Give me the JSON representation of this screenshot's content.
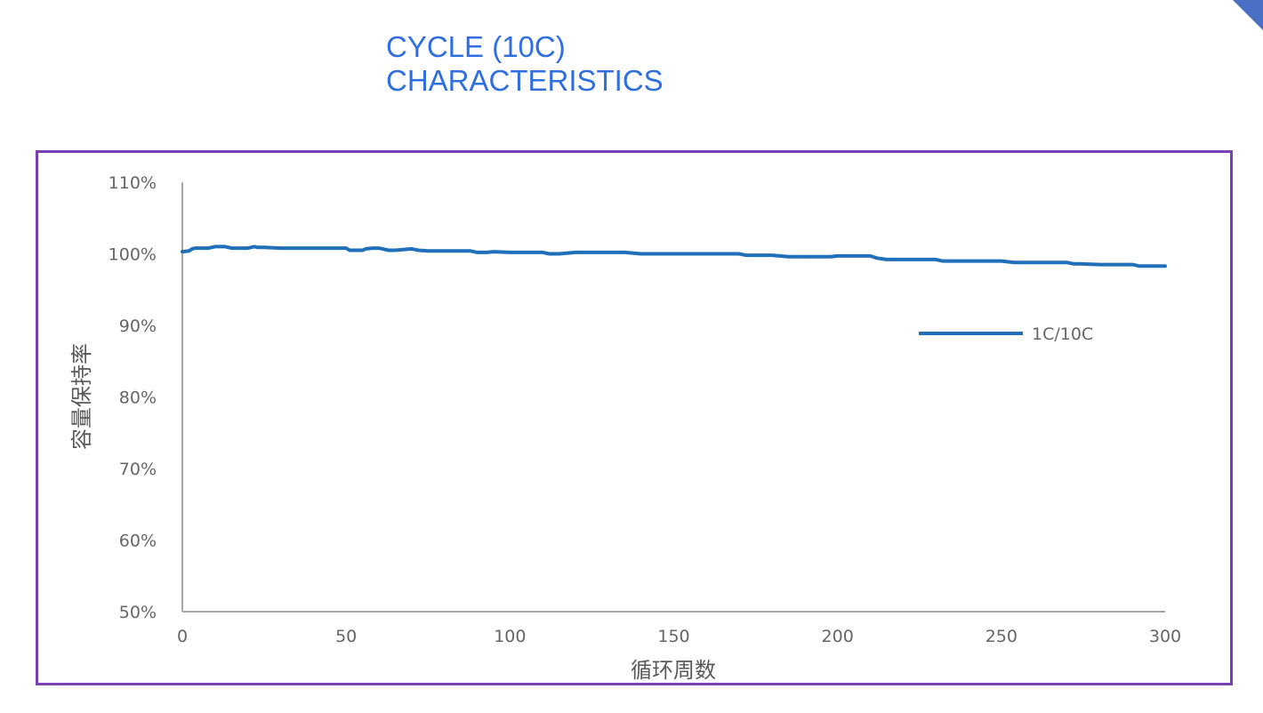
{
  "title_lines": [
    "CYCLE (10C)",
    "CHARACTERISTICS"
  ],
  "chart_data": {
    "type": "line",
    "title": "CYCLE (10C) CHARACTERISTICS",
    "xlabel": "循环周数",
    "ylabel": "容量保持率",
    "xlim": [
      0,
      300
    ],
    "ylim": [
      50,
      110
    ],
    "x_ticks": [
      0,
      50,
      100,
      150,
      200,
      250,
      300
    ],
    "x_tick_labels": [
      "0",
      "50",
      "100",
      "150",
      "200",
      "250",
      "300"
    ],
    "y_ticks": [
      50,
      60,
      70,
      80,
      90,
      100,
      110
    ],
    "y_tick_labels": [
      "50%",
      "60%",
      "70%",
      "80%",
      "90%",
      "100%",
      "110%"
    ],
    "legend_position": "right",
    "grid": false,
    "series": [
      {
        "name": "1C/10C",
        "color": "#1f6fba",
        "x": [
          0,
          2,
          3,
          4,
          8,
          10,
          13,
          15,
          20,
          22,
          23,
          25,
          30,
          40,
          50,
          51,
          55,
          56,
          58,
          60,
          63,
          65,
          70,
          72,
          75,
          80,
          88,
          90,
          93,
          95,
          100,
          110,
          112,
          115,
          120,
          130,
          135,
          140,
          150,
          160,
          170,
          172,
          180,
          185,
          190,
          198,
          200,
          204,
          210,
          212,
          215,
          220,
          230,
          232,
          240,
          250,
          254,
          256,
          270,
          272,
          274,
          280,
          290,
          292,
          300
        ],
        "y": [
          100.3,
          100.4,
          100.7,
          100.8,
          100.8,
          101.0,
          101.0,
          100.8,
          100.8,
          101.0,
          100.9,
          100.9,
          100.8,
          100.8,
          100.8,
          100.5,
          100.5,
          100.7,
          100.8,
          100.8,
          100.5,
          100.5,
          100.7,
          100.5,
          100.4,
          100.4,
          100.4,
          100.2,
          100.2,
          100.3,
          100.2,
          100.2,
          100.0,
          100.0,
          100.2,
          100.2,
          100.2,
          100.0,
          100.0,
          100.0,
          100.0,
          99.8,
          99.8,
          99.6,
          99.6,
          99.6,
          99.7,
          99.7,
          99.7,
          99.4,
          99.2,
          99.2,
          99.2,
          99.0,
          99.0,
          99.0,
          98.8,
          98.8,
          98.8,
          98.6,
          98.6,
          98.5,
          98.5,
          98.3,
          98.3
        ]
      }
    ]
  }
}
